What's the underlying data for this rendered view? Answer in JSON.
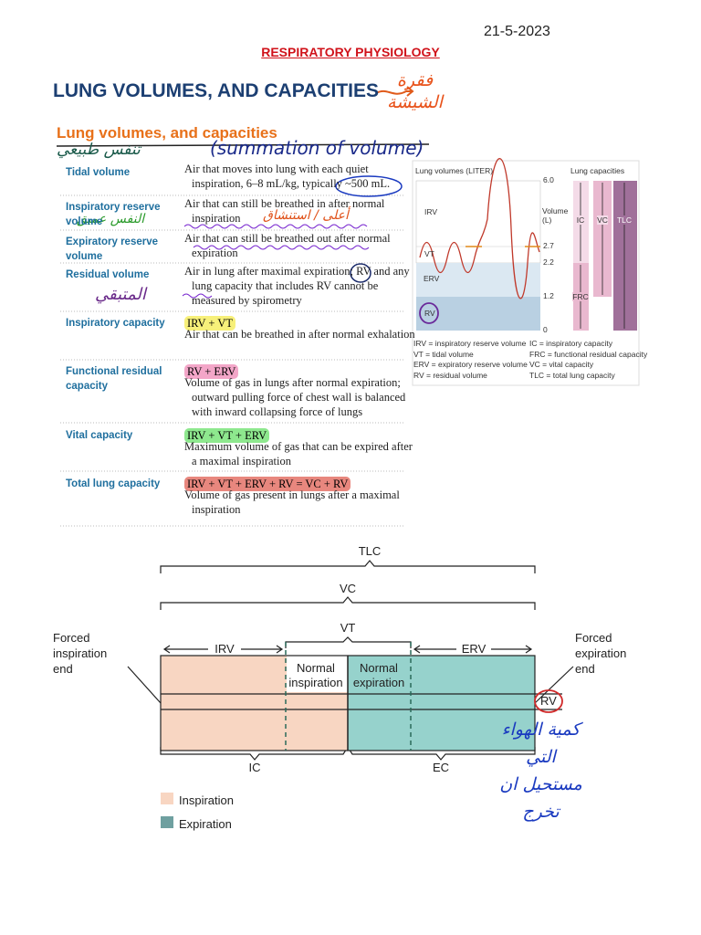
{
  "date": "21-5-2023",
  "header": {
    "course": "RESPIRATORY PHYSIOLOGY",
    "title": "LUNG VOLUMES, AND CAPACITIES",
    "subtitle": "Lung volumes, and capacities"
  },
  "annotations": [
    "فقرة الشيشة",
    "تنفس طبيعي",
    "(summation of volume)",
    "النفس عميق",
    "أعلى / استنشاق",
    "المتبقي",
    "كمية الهواء التي مستحيل ان تخرج"
  ],
  "table": {
    "rows": [
      {
        "term": "Tidal volume",
        "definition": "Air that moves into lung with each quiet inspiration, 6–8 mL/kg, typically ~500 mL."
      },
      {
        "term": "Inspiratory reserve volume",
        "definition": "Air that can still be breathed in after normal inspiration"
      },
      {
        "term": "Expiratory reserve volume",
        "definition": "Air that can still be breathed out after normal expiration"
      },
      {
        "term": "Residual volume",
        "definition": "Air in lung after maximal expiration; RV and any lung capacity that includes RV cannot be measured by spirometry"
      },
      {
        "term": "Inspiratory capacity",
        "formula": "IRV + VT",
        "definition": "Air that can be breathed in after normal exhalation"
      },
      {
        "term": "Functional residual capacity",
        "formula": "RV + ERV",
        "definition": "Volume of gas in lungs after normal expiration; outward pulling force of chest wall is balanced with inward collapsing force of lungs"
      },
      {
        "term": "Vital capacity",
        "formula": "IRV + VT + ERV",
        "definition": "Maximum volume of gas that can be expired after a maximal inspiration"
      },
      {
        "term": "Total lung capacity",
        "formula": "IRV + VT + ERV + RV = VC + RV",
        "definition": "Volume of gas present in lungs after a maximal inspiration"
      }
    ]
  },
  "volume_figure": {
    "title": "Lung volumes (LITER)",
    "capacities_title": "Lung capacities",
    "axis_label": "Volume (L)",
    "ticks": [
      "6.0",
      "2.7",
      "2.2",
      "1.2",
      "0"
    ],
    "volumes": [
      "IRV",
      "VT",
      "ERV",
      "RV"
    ],
    "capacities": [
      "IC",
      "VC",
      "TLC",
      "FRC"
    ],
    "legend": [
      "IRV = inspiratory reserve volume",
      "IC = inspiratory capacity",
      "VT = tidal volume",
      "FRC = functional residual capacity",
      "ERV = expiratory reserve volume",
      "VC = vital capacity",
      "RV = residual volume",
      "TLC = total lung capacity"
    ]
  },
  "spirometry_diagram": {
    "brackets": [
      "TLC",
      "VC",
      "VT"
    ],
    "left_label": "Forced inspiration end",
    "right_label": "Forced expiration end",
    "segments": [
      "IRV",
      "Normal inspiration",
      "Normal expiration",
      "ERV"
    ],
    "rv_label": "RV",
    "bottom_brackets": [
      "IC",
      "EC"
    ],
    "legend": [
      "Inspiration",
      "Expiration"
    ]
  }
}
